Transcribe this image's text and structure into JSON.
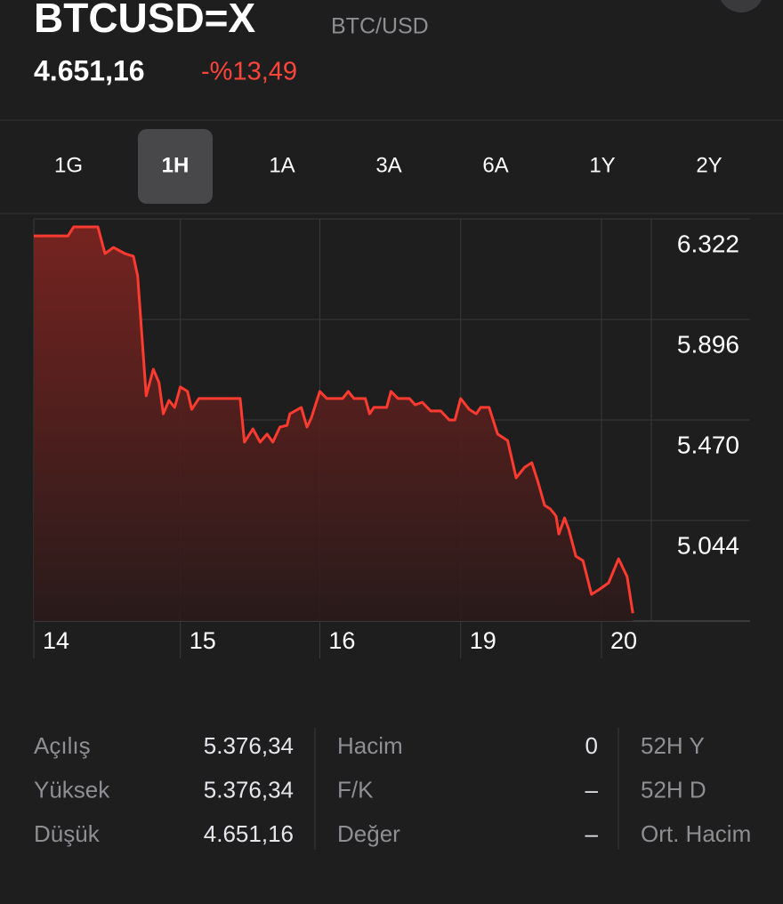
{
  "header": {
    "symbol": "BTCUSD=X",
    "name": "BTC/USD",
    "price": "4.651,16",
    "change": "-%13,49"
  },
  "tabs": {
    "items": [
      "1G",
      "1H",
      "1A",
      "3A",
      "6A",
      "1Y",
      "2Y"
    ],
    "selected": 1
  },
  "chart_data": {
    "type": "line",
    "x": [
      0,
      0.24,
      0.28,
      0.45,
      0.5,
      0.56,
      0.64,
      0.7,
      0.73,
      0.79,
      0.84,
      0.88,
      0.91,
      0.95,
      0.99,
      1.03,
      1.08,
      1.11,
      1.16,
      1.45,
      1.48,
      1.54,
      1.59,
      1.64,
      1.68,
      1.73,
      1.78,
      1.8,
      1.88,
      1.92,
      1.95,
      2.01,
      2.06,
      2.17,
      2.21,
      2.25,
      2.33,
      2.36,
      2.39,
      2.48,
      2.51,
      2.56,
      2.64,
      2.68,
      2.73,
      2.79,
      2.86,
      2.92,
      2.96,
      3.0,
      3.06,
      3.11,
      3.14,
      3.2,
      3.26,
      3.33,
      3.39,
      3.45,
      3.5,
      3.54,
      3.59,
      3.63,
      3.67,
      3.69,
      3.73,
      3.76,
      3.81,
      3.86,
      3.92,
      3.98,
      4.04,
      4.11,
      4.17,
      4.21
    ],
    "series": [
      {
        "color": "#ff3b30",
        "values": [
          6250,
          6250,
          6288,
          6288,
          6175,
          6201,
          6175,
          6164,
          6081,
          5572,
          5685,
          5628,
          5496,
          5553,
          5523,
          5610,
          5591,
          5515,
          5561,
          5561,
          5376,
          5432,
          5376,
          5410,
          5376,
          5440,
          5447,
          5496,
          5523,
          5440,
          5478,
          5591,
          5561,
          5561,
          5591,
          5561,
          5561,
          5496,
          5523,
          5523,
          5591,
          5561,
          5561,
          5534,
          5545,
          5508,
          5508,
          5470,
          5470,
          5561,
          5515,
          5496,
          5523,
          5523,
          5410,
          5383,
          5225,
          5270,
          5289,
          5214,
          5108,
          5093,
          5063,
          4987,
          5055,
          5006,
          4893,
          4874,
          4731,
          4754,
          4780,
          4882,
          4806,
          4651
        ]
      }
    ],
    "xlim": [
      0,
      4.34
    ],
    "xticks": [
      {
        "value": 0,
        "label": "14"
      },
      {
        "value": 1.03,
        "label": "15"
      },
      {
        "value": 2.01,
        "label": "16"
      },
      {
        "value": 3.0,
        "label": "19"
      },
      {
        "value": 3.99,
        "label": "20"
      }
    ],
    "ylim": [
      4618,
      6322
    ],
    "yticks": [
      {
        "value": 6322,
        "label": "6.322"
      },
      {
        "value": 5896,
        "label": "5.896"
      },
      {
        "value": 5470,
        "label": "5.470"
      },
      {
        "value": 5044,
        "label": "5.044"
      }
    ],
    "grid": true
  },
  "stats": {
    "columns": [
      [
        {
          "label": "Açılış",
          "value": "5.376,34"
        },
        {
          "label": "Yüksek",
          "value": "5.376,34"
        },
        {
          "label": "Düşük",
          "value": "4.651,16"
        }
      ],
      [
        {
          "label": "Hacim",
          "value": "0"
        },
        {
          "label": "F/K",
          "value": "–"
        },
        {
          "label": "Değer",
          "value": "–"
        }
      ],
      [
        {
          "label": "52H Y"
        },
        {
          "label": "52H D"
        },
        {
          "label": "Ort. Hacim"
        }
      ]
    ]
  }
}
